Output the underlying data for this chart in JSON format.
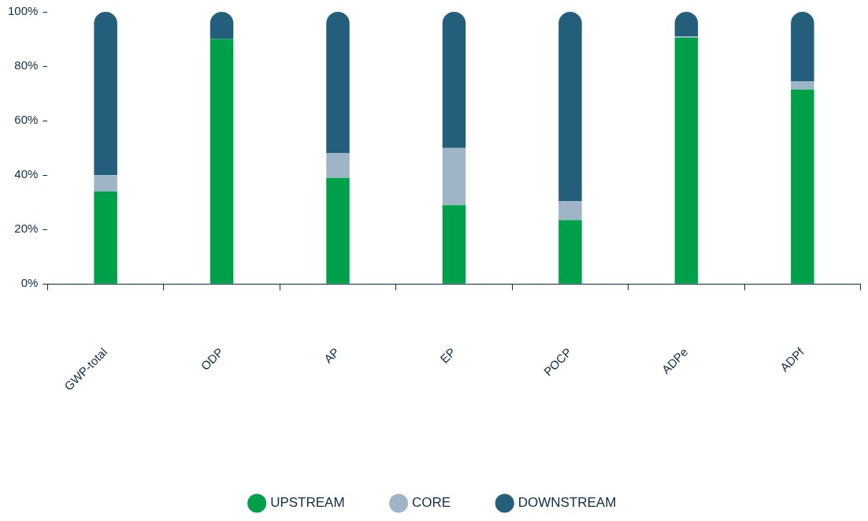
{
  "chart_data": {
    "type": "bar",
    "stacked": true,
    "categories": [
      "GWP-total",
      "ODP",
      "AP",
      "EP",
      "POCP",
      "ADPe",
      "ADPf"
    ],
    "series": [
      {
        "name": "UPSTREAM",
        "color": "#00a04b",
        "values": [
          34,
          90,
          39,
          29,
          23.5,
          90.5,
          71.5
        ]
      },
      {
        "name": "CORE",
        "color": "#9fb4c7",
        "values": [
          6,
          0,
          9,
          21,
          7,
          0.5,
          3
        ]
      },
      {
        "name": "DOWNSTREAM",
        "color": "#235e7b",
        "values": [
          60,
          10,
          52,
          50,
          69.5,
          9,
          25.5
        ]
      }
    ],
    "ylim": [
      0,
      100
    ],
    "yticks": [
      {
        "value": 0,
        "label": "0%"
      },
      {
        "value": 20,
        "label": "20%"
      },
      {
        "value": 40,
        "label": "40%"
      },
      {
        "value": 60,
        "label": "60%"
      },
      {
        "value": 80,
        "label": "80%"
      },
      {
        "value": 100,
        "label": "100%"
      }
    ],
    "grid": false,
    "legend": "bottom"
  }
}
